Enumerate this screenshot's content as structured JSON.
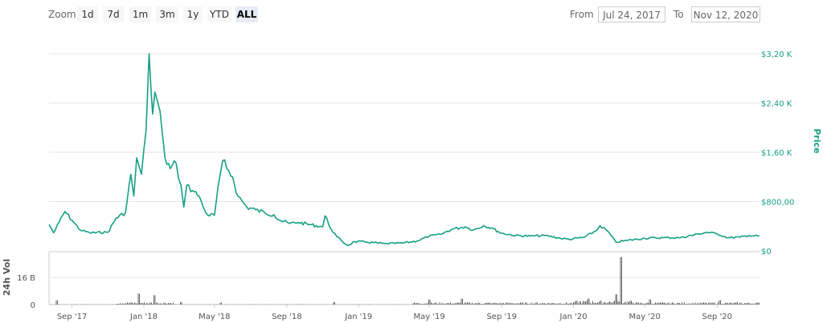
{
  "toolbar": {
    "zoom_label": "Zoom",
    "buttons": [
      "1d",
      "7d",
      "1m",
      "3m",
      "1y",
      "YTD",
      "ALL"
    ],
    "active": "ALL",
    "from_label": "From",
    "from_value": "Jul 24, 2017",
    "to_label": "To",
    "to_value": "Nov 12, 2020"
  },
  "colors": {
    "price": "#16a085",
    "volume": "#666666",
    "grid": "#e6e6e6"
  },
  "chart_data": {
    "type": "line",
    "x_range": [
      "2017-07-24",
      "2020-11-12"
    ],
    "x_ticks": [
      "Sep '17",
      "Jan '18",
      "May '18",
      "Sep '18",
      "Jan '19",
      "May '19",
      "Sep '19",
      "Jan '20",
      "May '20",
      "Sep '20"
    ],
    "price": {
      "title": "Price",
      "ylim": [
        0,
        3600
      ],
      "ticks": [
        "$0",
        "$800,00",
        "$1,60 K",
        "$2,40 K",
        "$3,20 K"
      ],
      "series": [
        {
          "values": [
            [
              "2017-07-24",
              480
            ],
            [
              "2017-08-01",
              330
            ],
            [
              "2017-08-10",
              520
            ],
            [
              "2017-08-20",
              720
            ],
            [
              "2017-09-01",
              560
            ],
            [
              "2017-09-15",
              380
            ],
            [
              "2017-10-01",
              330
            ],
            [
              "2017-11-01",
              340
            ],
            [
              "2017-11-15",
              600
            ],
            [
              "2017-12-01",
              700
            ],
            [
              "2017-12-10",
              1400
            ],
            [
              "2017-12-15",
              1000
            ],
            [
              "2017-12-20",
              1700
            ],
            [
              "2017-12-28",
              1400
            ],
            [
              "2018-01-05",
              2200
            ],
            [
              "2018-01-10",
              3600
            ],
            [
              "2018-01-13",
              3000
            ],
            [
              "2018-01-16",
              2500
            ],
            [
              "2018-01-20",
              2900
            ],
            [
              "2018-01-25",
              2700
            ],
            [
              "2018-02-01",
              2200
            ],
            [
              "2018-02-06",
              1700
            ],
            [
              "2018-02-15",
              1500
            ],
            [
              "2018-02-25",
              1600
            ],
            [
              "2018-03-05",
              1200
            ],
            [
              "2018-03-10",
              800
            ],
            [
              "2018-03-15",
              1200
            ],
            [
              "2018-03-25",
              1100
            ],
            [
              "2018-04-05",
              1000
            ],
            [
              "2018-04-12",
              800
            ],
            [
              "2018-04-20",
              650
            ],
            [
              "2018-05-01",
              650
            ],
            [
              "2018-05-10",
              1350
            ],
            [
              "2018-05-15",
              1650
            ],
            [
              "2018-05-22",
              1500
            ],
            [
              "2018-06-01",
              1350
            ],
            [
              "2018-06-10",
              1000
            ],
            [
              "2018-06-25",
              800
            ],
            [
              "2018-07-10",
              750
            ],
            [
              "2018-07-25",
              700
            ],
            [
              "2018-08-10",
              660
            ],
            [
              "2018-08-20",
              560
            ],
            [
              "2018-09-05",
              500
            ],
            [
              "2018-09-20",
              520
            ],
            [
              "2018-10-10",
              480
            ],
            [
              "2018-11-01",
              440
            ],
            [
              "2018-11-05",
              640
            ],
            [
              "2018-11-15",
              400
            ],
            [
              "2018-11-25",
              260
            ],
            [
              "2018-12-05",
              160
            ],
            [
              "2018-12-14",
              100
            ],
            [
              "2018-12-25",
              170
            ],
            [
              "2019-01-15",
              160
            ],
            [
              "2019-02-15",
              130
            ],
            [
              "2019-03-15",
              140
            ],
            [
              "2019-04-10",
              180
            ],
            [
              "2019-05-01",
              270
            ],
            [
              "2019-05-20",
              300
            ],
            [
              "2019-06-10",
              400
            ],
            [
              "2019-07-01",
              440
            ],
            [
              "2019-07-15",
              380
            ],
            [
              "2019-08-01",
              460
            ],
            [
              "2019-08-15",
              420
            ],
            [
              "2019-09-01",
              320
            ],
            [
              "2019-09-25",
              280
            ],
            [
              "2019-10-20",
              270
            ],
            [
              "2019-11-15",
              280
            ],
            [
              "2019-12-10",
              230
            ],
            [
              "2019-12-25",
              210
            ],
            [
              "2020-01-20",
              250
            ],
            [
              "2020-02-10",
              380
            ],
            [
              "2020-02-15",
              460
            ],
            [
              "2020-02-28",
              360
            ],
            [
              "2020-03-13",
              160
            ],
            [
              "2020-04-01",
              190
            ],
            [
              "2020-05-01",
              230
            ],
            [
              "2020-06-01",
              240
            ],
            [
              "2020-07-01",
              240
            ],
            [
              "2020-08-01",
              310
            ],
            [
              "2020-08-15",
              340
            ],
            [
              "2020-09-01",
              310
            ],
            [
              "2020-09-20",
              240
            ],
            [
              "2020-10-10",
              250
            ],
            [
              "2020-10-25",
              280
            ],
            [
              "2020-11-12",
              270
            ]
          ]
        }
      ]
    },
    "volume": {
      "title": "24h Vol",
      "ticks": [
        "0",
        "16 B"
      ],
      "ylim": [
        0,
        16
      ],
      "unit": "B",
      "spikes": [
        [
          "2017-08-05",
          2.5
        ],
        [
          "2017-12-22",
          6.5
        ],
        [
          "2018-01-18",
          5.5
        ],
        [
          "2018-03-05",
          1.5
        ],
        [
          "2018-05-12",
          1.2
        ],
        [
          "2018-11-20",
          1.5
        ],
        [
          "2019-05-01",
          3.0
        ],
        [
          "2019-06-25",
          3.5
        ],
        [
          "2020-01-25",
          3.5
        ],
        [
          "2020-03-12",
          6.0
        ],
        [
          "2020-03-22",
          28.0
        ],
        [
          "2020-05-10",
          3.0
        ],
        [
          "2020-09-05",
          2.5
        ]
      ]
    }
  }
}
